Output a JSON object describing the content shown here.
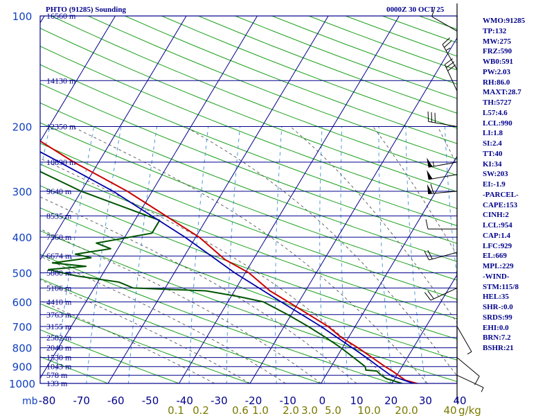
{
  "header": {
    "title": "PHTO (91285) Sounding",
    "valid_time": "0000Z 30 OCT 25"
  },
  "indices": [
    "WMO:91285",
    "TP:132",
    "MW:275",
    "FRZ:590",
    "WB0:591",
    "PW:2.03",
    "RH:86.0",
    "MAXT:28.7",
    "TH:5727",
    "L57:4.6",
    "LCL:990",
    "LI:1.8",
    "SI:2.4",
    "TT:40",
    "KI:34",
    "SW:203",
    "EI:-1.9",
    "-PARCEL-",
    "CAPE:153",
    "CINH:2",
    "LCL:954",
    "CAP:1.4",
    "LFC:929",
    "EL:669",
    "MPL:229",
    "-WIND-",
    "STM:115/8",
    "HEL:35",
    "SHR-:0.0",
    "SRDS:99",
    "EHI:0.0",
    "BRN:7.2",
    "BSHR:21"
  ],
  "colors": {
    "frame": "#00008b",
    "isobar": "#00008b",
    "isotherm": "#00008b",
    "dry_adiabat": "#1aa01a",
    "moist_adiabat": "#555555",
    "mixing_ratio": "#3a8fd0",
    "temperature": "#cc0000",
    "dewpoint": "#005500",
    "parcel": "#0000aa",
    "pressure_label": "#1040c0",
    "temp_label": "#00008b",
    "mixing_label": "#7a7a00",
    "height_label": "#00008b",
    "wind": "#000000"
  },
  "chart_data": {
    "type": "line",
    "chart_kind": "Skew-T log-P sounding",
    "pressure_unit_label": "mb",
    "mixing_ratio_unit_label": "g/kg",
    "pressure_levels": [
      100,
      200,
      300,
      400,
      500,
      600,
      700,
      800,
      900,
      1000
    ],
    "temperature_ticks": [
      -80,
      -70,
      -60,
      -50,
      -40,
      -30,
      -20,
      -10,
      0,
      10,
      20,
      30,
      40
    ],
    "temperature_tick_labels": [
      "-80",
      "-70",
      "-60",
      "-50",
      "-40",
      "-30",
      "-20",
      "-10",
      "0",
      "10",
      "20",
      "30",
      "40"
    ],
    "mixing_ratio_labels": [
      "0.1",
      "0.2",
      "0.6",
      "1.0",
      "2.0",
      "3.0",
      "5.0",
      "10.0",
      "20.0",
      "40"
    ],
    "mixing_ratio_values": [
      0.1,
      0.2,
      0.6,
      1.0,
      2.0,
      3.0,
      5.0,
      10.0,
      20.0,
      40
    ],
    "height_labels": [
      {
        "p": 100,
        "label": "16560 m"
      },
      {
        "p": 150,
        "label": "14130 m"
      },
      {
        "p": 200,
        "label": "12350 m"
      },
      {
        "p": 250,
        "label": "10890 m"
      },
      {
        "p": 300,
        "label": "9640 m"
      },
      {
        "p": 350,
        "label": "8535 m"
      },
      {
        "p": 400,
        "label": "7560 m"
      },
      {
        "p": 450,
        "label": "6674 m"
      },
      {
        "p": 500,
        "label": "5860 m"
      },
      {
        "p": 550,
        "label": "5106 m"
      },
      {
        "p": 600,
        "label": "4410 m"
      },
      {
        "p": 650,
        "label": "3763 m"
      },
      {
        "p": 700,
        "label": "3155 m"
      },
      {
        "p": 750,
        "label": "2582 m"
      },
      {
        "p": 800,
        "label": "2040 m"
      },
      {
        "p": 850,
        "label": "1530 m"
      },
      {
        "p": 900,
        "label": "1043 m"
      },
      {
        "p": 950,
        "label": "578 m"
      },
      {
        "p": 1000,
        "label": "133 m"
      }
    ],
    "ylim": [
      100,
      1000
    ],
    "xlim": [
      -80,
      40
    ],
    "series": [
      {
        "key": "temperature",
        "points": [
          {
            "p": 1010,
            "t": 24.5
          },
          {
            "p": 1000,
            "t": 23.5
          },
          {
            "p": 980,
            "t": 21.6
          },
          {
            "p": 950,
            "t": 20.2
          },
          {
            "p": 925,
            "t": 19.0
          },
          {
            "p": 900,
            "t": 17.6
          },
          {
            "p": 850,
            "t": 15.0
          },
          {
            "p": 800,
            "t": 12.2
          },
          {
            "p": 750,
            "t": 9.0
          },
          {
            "p": 700,
            "t": 6.2
          },
          {
            "p": 650,
            "t": 2.5
          },
          {
            "p": 600,
            "t": -1.5
          },
          {
            "p": 560,
            "t": -5.0
          },
          {
            "p": 500,
            "t": -9.5
          },
          {
            "p": 460,
            "t": -14.0
          },
          {
            "p": 400,
            "t": -19.5
          },
          {
            "p": 350,
            "t": -26.0
          },
          {
            "p": 300,
            "t": -33.5
          },
          {
            "p": 250,
            "t": -43.5
          },
          {
            "p": 200,
            "t": -54.5
          },
          {
            "p": 150,
            "t": -68.5
          },
          {
            "p": 132,
            "t": -71.0
          },
          {
            "p": 115,
            "t": -70.5
          },
          {
            "p": 100,
            "t": -70.5
          }
        ]
      },
      {
        "key": "dewpoint",
        "points": [
          {
            "p": 1010,
            "t": 22.0
          },
          {
            "p": 1000,
            "t": 21.4
          },
          {
            "p": 970,
            "t": 18.8
          },
          {
            "p": 950,
            "t": 17.8
          },
          {
            "p": 925,
            "t": 16.8
          },
          {
            "p": 920,
            "t": 15.2
          },
          {
            "p": 900,
            "t": 14.8
          },
          {
            "p": 850,
            "t": 12.4
          },
          {
            "p": 800,
            "t": 9.8
          },
          {
            "p": 750,
            "t": 6.8
          },
          {
            "p": 700,
            "t": 3.4
          },
          {
            "p": 650,
            "t": -0.5
          },
          {
            "p": 600,
            "t": -5.0
          },
          {
            "p": 580,
            "t": -9.0
          },
          {
            "p": 560,
            "t": -14.0
          },
          {
            "p": 550,
            "t": -24.5
          },
          {
            "p": 530,
            "t": -27.0
          },
          {
            "p": 510,
            "t": -33.5
          },
          {
            "p": 490,
            "t": -38.0
          },
          {
            "p": 480,
            "t": -33.0
          },
          {
            "p": 470,
            "t": -38.0
          },
          {
            "p": 455,
            "t": -33.0
          },
          {
            "p": 445,
            "t": -35.5
          },
          {
            "p": 430,
            "t": -31.0
          },
          {
            "p": 415,
            "t": -33.5
          },
          {
            "p": 390,
            "t": -26.5
          },
          {
            "p": 360,
            "t": -26.5
          },
          {
            "p": 300,
            "t": -40.0
          },
          {
            "p": 250,
            "t": -51.0
          },
          {
            "p": 200,
            "t": -65.5
          },
          {
            "p": 150,
            "t": -80.0
          }
        ]
      },
      {
        "key": "parcel",
        "points": [
          {
            "p": 1000,
            "t": 23.0
          },
          {
            "p": 954,
            "t": 19.3
          },
          {
            "p": 900,
            "t": 16.7
          },
          {
            "p": 850,
            "t": 14.2
          },
          {
            "p": 800,
            "t": 11.4
          },
          {
            "p": 700,
            "t": 5.2
          },
          {
            "p": 600,
            "t": -2.5
          },
          {
            "p": 500,
            "t": -11.5
          },
          {
            "p": 400,
            "t": -21.5
          },
          {
            "p": 300,
            "t": -35.5
          },
          {
            "p": 250,
            "t": -45.5
          },
          {
            "p": 200,
            "t": -58.0
          },
          {
            "p": 150,
            "t": -73.0
          },
          {
            "p": 130,
            "t": -80.0
          }
        ]
      }
    ],
    "wind_barbs": [
      {
        "p": 110,
        "dir": 300,
        "spd": 10
      },
      {
        "p": 140,
        "dir": 330,
        "spd": 25
      },
      {
        "p": 160,
        "dir": 335,
        "spd": 30
      },
      {
        "p": 200,
        "dir": 280,
        "spd": 30
      },
      {
        "p": 250,
        "dir": 260,
        "spd": 55
      },
      {
        "p": 270,
        "dir": 260,
        "spd": 50
      },
      {
        "p": 300,
        "dir": 265,
        "spd": 60
      },
      {
        "p": 380,
        "dir": 270,
        "spd": 10
      },
      {
        "p": 440,
        "dir": 255,
        "spd": 20
      },
      {
        "p": 550,
        "dir": 245,
        "spd": 20
      },
      {
        "p": 700,
        "dir": 150,
        "spd": 5
      },
      {
        "p": 850,
        "dir": 130,
        "spd": 10
      },
      {
        "p": 950,
        "dir": 115,
        "spd": 5
      }
    ]
  }
}
